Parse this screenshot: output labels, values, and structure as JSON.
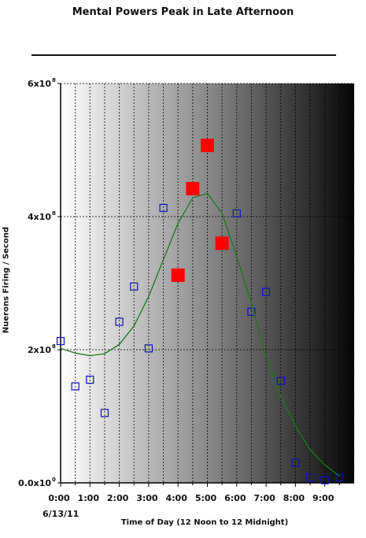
{
  "chart_data": {
    "type": "scatter",
    "title": "Mental Powers Peak in Late Afternoon",
    "xlabel": "Time of Day (12 Noon to 12 Midnight)",
    "ylabel": "Nuerons Firing / Second",
    "x_sublabel": "6/13/11",
    "xlim": [
      0,
      10
    ],
    "ylim": [
      0,
      6
    ],
    "y_exponent": "8",
    "x_ticks": [
      0,
      1,
      2,
      3,
      4,
      5,
      6,
      7,
      8,
      9
    ],
    "x_tick_labels": [
      "0:00",
      "1:00",
      "2:00",
      "3:00",
      "4:00",
      "5:00",
      "6:00",
      "7:00",
      "8:00",
      "9:00"
    ],
    "y_ticks": [
      0,
      2,
      4,
      6
    ],
    "y_tick_labels": [
      "0.0x10",
      "2x10",
      "4x10",
      "6x10"
    ],
    "y_tick_exponents": [
      "0",
      "8",
      "8",
      "8"
    ],
    "grid": true,
    "series": [
      {
        "marker": "hollow-square",
        "color": "#1010c0",
        "x": [
          0,
          0.5,
          1,
          1.5,
          2,
          2.5,
          3,
          3.5,
          6,
          6.5,
          7,
          7.5,
          8,
          8.5,
          9,
          9.5
        ],
        "y": [
          2.13,
          1.45,
          1.55,
          1.05,
          2.42,
          2.95,
          2.02,
          4.13,
          4.05,
          2.57,
          2.87,
          1.53,
          0.3,
          0.08,
          0.04,
          0.08
        ]
      },
      {
        "marker": "filled-square",
        "color": "#ff0000",
        "x": [
          4,
          4.5,
          5,
          5.5
        ],
        "y": [
          3.12,
          4.42,
          5.07,
          3.6
        ]
      },
      {
        "marker": "line",
        "color": "#1a7a1a",
        "x": [
          0,
          0.5,
          1,
          1.5,
          2,
          2.5,
          3,
          3.5,
          4,
          4.5,
          5,
          5.5,
          6,
          6.5,
          7,
          7.5,
          8,
          8.5,
          9,
          9.5
        ],
        "y": [
          2.02,
          1.95,
          1.91,
          1.94,
          2.08,
          2.36,
          2.8,
          3.35,
          3.9,
          4.28,
          4.35,
          4.05,
          3.4,
          2.7,
          1.9,
          1.3,
          0.85,
          0.5,
          0.27,
          0.1
        ]
      }
    ]
  }
}
